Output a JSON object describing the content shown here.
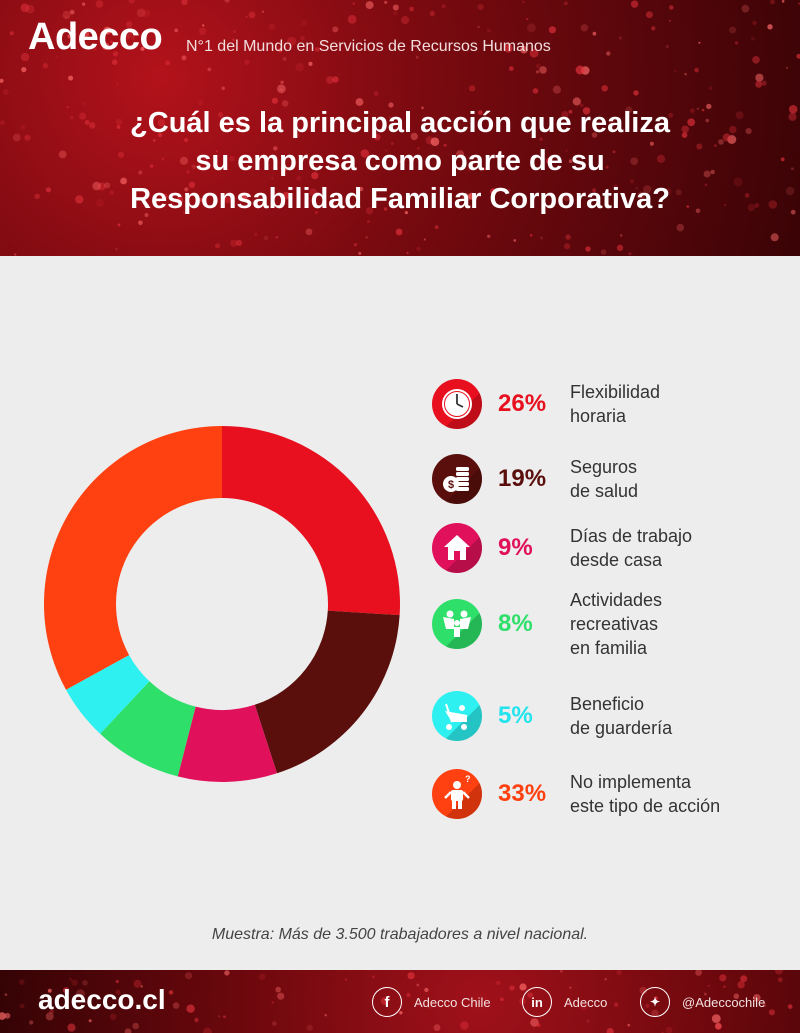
{
  "header": {
    "logo": "Adecco",
    "tagline": "N°1 del Mundo en Servicios de Recursos Humanos",
    "question_lines": [
      "¿Cuál es la principal acción que realiza",
      "su empresa como parte de su",
      "Responsabilidad Familiar Corporativa?"
    ]
  },
  "chart_data": {
    "type": "pie",
    "slices": [
      {
        "label_lines": [
          "Flexibilidad",
          "horaria"
        ],
        "value": 26,
        "display": "26%",
        "color": "#e8101e",
        "icon": "clock-icon"
      },
      {
        "label_lines": [
          "Seguros",
          "de salud"
        ],
        "value": 19,
        "display": "19%",
        "color": "#5a0f0c",
        "icon": "coins-icon"
      },
      {
        "label_lines": [
          "Días de trabajo",
          "desde casa"
        ],
        "value": 9,
        "display": "9%",
        "color": "#e0105a",
        "icon": "house-icon"
      },
      {
        "label_lines": [
          "Actividades",
          "recreativas",
          "en familia"
        ],
        "value": 8,
        "display": "8%",
        "color": "#2edf6a",
        "icon": "family-icon"
      },
      {
        "label_lines": [
          "Beneficio",
          "de guardería"
        ],
        "value": 5,
        "display": "5%",
        "color": "#2ef0f0",
        "icon": "stroller-icon"
      },
      {
        "label_lines": [
          "No implementa",
          "este tipo de acción"
        ],
        "value": 33,
        "display": "33%",
        "color": "#ff4010",
        "icon": "confused-person-icon"
      }
    ]
  },
  "note": "Muestra: Más de 3.500 trabajadores a nivel nacional.",
  "footer": {
    "site": "adecco.cl",
    "social": [
      {
        "icon": "facebook-icon",
        "glyph": "f",
        "label": "Adecco Chile"
      },
      {
        "icon": "linkedin-icon",
        "glyph": "in",
        "label": "Adecco"
      },
      {
        "icon": "twitter-icon",
        "glyph": "🐦",
        "label": "@Adeccochile"
      }
    ]
  }
}
